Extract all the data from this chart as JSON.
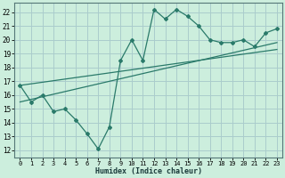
{
  "xlabel": "Humidex (Indice chaleur)",
  "ylabel": "",
  "bg_color": "#cceedd",
  "grid_color": "#aacccc",
  "line_color": "#2a7a6a",
  "xlim": [
    -0.5,
    23.5
  ],
  "ylim": [
    11.5,
    22.7
  ],
  "yticks": [
    12,
    13,
    14,
    15,
    16,
    17,
    18,
    19,
    20,
    21,
    22
  ],
  "xticks": [
    0,
    1,
    2,
    3,
    4,
    5,
    6,
    7,
    8,
    9,
    10,
    11,
    12,
    13,
    14,
    15,
    16,
    17,
    18,
    19,
    20,
    21,
    22,
    23
  ],
  "main_x": [
    0,
    1,
    2,
    3,
    4,
    5,
    6,
    7,
    8,
    9,
    10,
    11,
    12,
    13,
    14,
    15,
    16,
    17,
    18,
    19,
    20,
    21,
    22,
    23
  ],
  "main_y": [
    16.7,
    15.5,
    16.0,
    14.8,
    15.0,
    14.2,
    13.2,
    12.1,
    13.7,
    18.5,
    20.0,
    18.5,
    22.2,
    21.5,
    22.2,
    21.7,
    21.0,
    20.0,
    19.8,
    19.8,
    20.0,
    19.5,
    20.5,
    20.8
  ],
  "line1_x": [
    0,
    23
  ],
  "line1_y": [
    15.5,
    19.8
  ],
  "line2_x": [
    0,
    23
  ],
  "line2_y": [
    16.7,
    19.3
  ]
}
